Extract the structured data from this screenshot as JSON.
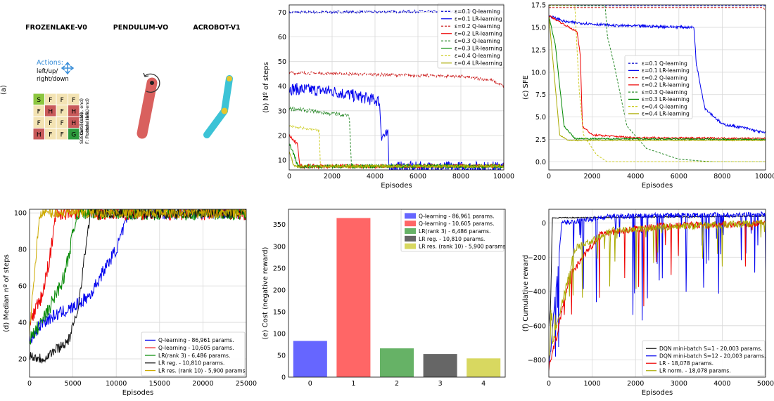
{
  "env_panel": {
    "panel_label": "(a)",
    "env_titles": [
      "FROZENLAKE-V0",
      "PENDULUM-VO",
      "ACROBOT-V1"
    ],
    "actions_title": "Actions:",
    "actions_lines": [
      "left/up/",
      "right/down"
    ],
    "grid": [
      [
        "S",
        "F",
        "F",
        "F"
      ],
      [
        "F",
        "H",
        "F",
        "H"
      ],
      [
        "F",
        "F",
        "F",
        "H"
      ],
      [
        "H",
        "F",
        "F",
        "G"
      ]
    ],
    "legend_lines": [
      "G: Goal (safe, end)",
      "H: Hole (fail, end)",
      "S: Start (safe)",
      "F: Frozen (safe)"
    ],
    "colors": {
      "S": "#8cc63f",
      "G": "#2e9b3e",
      "H": "#c85a5a",
      "F": "#f3e3b3",
      "pendulum": "#d9605e",
      "acrobot": "#3cc3d6",
      "joint": "#e6c62e",
      "actions": "#3a8fd9"
    }
  },
  "chart_data": [
    {
      "id": "b",
      "type": "line",
      "ylabel": "(b) Nº of steps",
      "xlabel": "Episodes",
      "xlim": [
        0,
        10000
      ],
      "ylim": [
        6,
        73
      ],
      "xticks": [
        "0",
        "2000",
        "4000",
        "6000",
        "8000",
        "10000"
      ],
      "yticks": [
        "10",
        "20",
        "30",
        "40",
        "50",
        "60",
        "70"
      ],
      "legend": "top-right",
      "series": [
        {
          "name": "ε=0.1 Q-learning",
          "color": "#0000cc",
          "dash": true,
          "noise": 0.5,
          "points": [
            [
              0,
              70
            ],
            [
              10000,
              70.5
            ]
          ]
        },
        {
          "name": "ε=0.1 LR-learning",
          "color": "#0000ee",
          "dash": false,
          "noise": 2.5,
          "points": [
            [
              0,
              39
            ],
            [
              2000,
              38
            ],
            [
              4200,
              34
            ],
            [
              4300,
              20
            ],
            [
              4600,
              20
            ],
            [
              4650,
              7
            ],
            [
              10000,
              7
            ]
          ]
        },
        {
          "name": "ε=0.2 Q-learning",
          "color": "#cc2222",
          "dash": true,
          "noise": 0.6,
          "points": [
            [
              0,
              45.5
            ],
            [
              8000,
              44
            ],
            [
              9400,
              42.5
            ],
            [
              10000,
              40
            ]
          ]
        },
        {
          "name": "ε=0.2 LR-learning",
          "color": "#ee0000",
          "dash": false,
          "noise": 0.8,
          "points": [
            [
              0,
              20
            ],
            [
              400,
              16
            ],
            [
              500,
              7.5
            ],
            [
              10000,
              7.5
            ]
          ]
        },
        {
          "name": "ε=0.3 Q-learning",
          "color": "#2a8a2a",
          "dash": true,
          "noise": 0.8,
          "points": [
            [
              0,
              31
            ],
            [
              2800,
              28
            ],
            [
              2900,
              7.5
            ],
            [
              10000,
              7.5
            ]
          ]
        },
        {
          "name": "ε=0.3 LR-learning",
          "color": "#008800",
          "dash": false,
          "noise": 0.8,
          "points": [
            [
              0,
              17
            ],
            [
              300,
              10
            ],
            [
              400,
              7.5
            ],
            [
              10000,
              7.5
            ]
          ]
        },
        {
          "name": "ε=0.4 Q-learning",
          "color": "#cccc22",
          "dash": true,
          "noise": 0.5,
          "points": [
            [
              0,
              24
            ],
            [
              1400,
              22
            ],
            [
              1450,
              7.5
            ],
            [
              10000,
              7.5
            ]
          ]
        },
        {
          "name": "ε=0.4 LR-learning",
          "color": "#aaaa00",
          "dash": false,
          "noise": 0.5,
          "points": [
            [
              0,
              14
            ],
            [
              200,
              8
            ],
            [
              300,
              7.5
            ],
            [
              10000,
              7.5
            ]
          ]
        }
      ]
    },
    {
      "id": "c",
      "type": "line",
      "ylabel": "(c) SFE",
      "xlabel": "Episodes",
      "xlim": [
        0,
        10000
      ],
      "ylim": [
        -0.9,
        17.5
      ],
      "xticks": [
        "0",
        "2000",
        "4000",
        "6000",
        "8000",
        "10000"
      ],
      "yticks": [
        "0.0",
        "2.5",
        "5.0",
        "7.5",
        "10.0",
        "12.5",
        "15.0",
        "17.5"
      ],
      "legend": "center-right",
      "series": [
        {
          "name": "ε=0.1 Q-learning",
          "color": "#0000cc",
          "dash": true,
          "noise": 0,
          "points": [
            [
              0,
              17.4
            ],
            [
              10000,
              17.4
            ]
          ]
        },
        {
          "name": "ε=0.1 LR-learning",
          "color": "#0000ee",
          "dash": false,
          "noise": 0.15,
          "points": [
            [
              0,
              16.3
            ],
            [
              800,
              15.6
            ],
            [
              3000,
              15.2
            ],
            [
              6700,
              15
            ],
            [
              6800,
              11
            ],
            [
              7200,
              6
            ],
            [
              8000,
              4.2
            ],
            [
              9000,
              3.8
            ],
            [
              10000,
              3.2
            ]
          ]
        },
        {
          "name": "ε=0.2 Q-learning",
          "color": "#cc2222",
          "dash": true,
          "noise": 0,
          "points": [
            [
              0,
              17.2
            ],
            [
              9900,
              17.2
            ],
            [
              10000,
              16.8
            ]
          ]
        },
        {
          "name": "ε=0.2 LR-learning",
          "color": "#ee0000",
          "dash": false,
          "noise": 0.1,
          "points": [
            [
              0,
              16.3
            ],
            [
              1300,
              14.5
            ],
            [
              1450,
              12
            ],
            [
              1550,
              4
            ],
            [
              2000,
              3
            ],
            [
              4000,
              2.7
            ],
            [
              10000,
              2.6
            ]
          ]
        },
        {
          "name": "ε=0.3 Q-learning",
          "color": "#2a8a2a",
          "dash": true,
          "noise": 0,
          "points": [
            [
              0,
              17.4
            ],
            [
              2600,
              17.4
            ],
            [
              2700,
              14
            ],
            [
              3000,
              11
            ],
            [
              3600,
              4
            ],
            [
              4500,
              1.5
            ],
            [
              6000,
              0.3
            ],
            [
              7600,
              0
            ],
            [
              10000,
              0
            ]
          ]
        },
        {
          "name": "ε=0.3 LR-learning",
          "color": "#008800",
          "dash": false,
          "noise": 0.08,
          "points": [
            [
              0,
              16.3
            ],
            [
              300,
              13
            ],
            [
              700,
              4
            ],
            [
              1200,
              2.6
            ],
            [
              10000,
              2.5
            ]
          ]
        },
        {
          "name": "ε=0.4 Q-learning",
          "color": "#cccc22",
          "dash": true,
          "noise": 0,
          "points": [
            [
              0,
              17.4
            ],
            [
              1200,
              17.4
            ],
            [
              1400,
              8
            ],
            [
              1600,
              3
            ],
            [
              2200,
              0.8
            ],
            [
              2700,
              0
            ],
            [
              10000,
              0
            ]
          ]
        },
        {
          "name": "ε=0.4 LR-learning",
          "color": "#aaaa00",
          "dash": false,
          "noise": 0.06,
          "points": [
            [
              0,
              16.3
            ],
            [
              200,
              11
            ],
            [
              500,
              3
            ],
            [
              900,
              2.4
            ],
            [
              10000,
              2.4
            ]
          ]
        }
      ]
    },
    {
      "id": "d",
      "type": "line",
      "ylabel": "(d) Median nº of steps",
      "xlabel": "Episodes",
      "xlim": [
        0,
        25000
      ],
      "ylim": [
        10,
        102
      ],
      "xticks": [
        "0",
        "5000",
        "10000",
        "15000",
        "20000",
        "25000"
      ],
      "yticks": [
        "20",
        "40",
        "60",
        "80",
        "100"
      ],
      "legend": "bottom-right",
      "series": [
        {
          "name": "Q-learning - 86,961 params.",
          "color": "#0000ee",
          "dash": false,
          "noise": 3.5,
          "points": [
            [
              0,
              30
            ],
            [
              1500,
              40
            ],
            [
              3000,
              44
            ],
            [
              5000,
              48
            ],
            [
              7000,
              55
            ],
            [
              8500,
              68
            ],
            [
              10000,
              80
            ],
            [
              11500,
              100
            ],
            [
              25000,
              100
            ]
          ]
        },
        {
          "name": "Q-learning - 10,605 params.",
          "color": "#ee0000",
          "dash": false,
          "noise": 4,
          "points": [
            [
              0,
              40
            ],
            [
              1500,
              55
            ],
            [
              2500,
              80
            ],
            [
              3000,
              100
            ],
            [
              25000,
              100
            ]
          ]
        },
        {
          "name": "LR(rank 3) - 6,486 params.",
          "color": "#008800",
          "dash": false,
          "noise": 4,
          "points": [
            [
              0,
              30
            ],
            [
              2000,
              45
            ],
            [
              4000,
              65
            ],
            [
              5500,
              100
            ],
            [
              25000,
              100
            ]
          ]
        },
        {
          "name": "LR reg. - 10,810 params.",
          "color": "#111111",
          "dash": false,
          "noise": 3,
          "points": [
            [
              0,
              22
            ],
            [
              1500,
              20
            ],
            [
              3000,
              25
            ],
            [
              4500,
              30
            ],
            [
              5500,
              45
            ],
            [
              7000,
              100
            ],
            [
              25000,
              100
            ]
          ]
        },
        {
          "name": "LR res. (rank 10) - 5,900 params",
          "color": "#ccaa00",
          "dash": false,
          "noise": 3,
          "points": [
            [
              0,
              35
            ],
            [
              800,
              80
            ],
            [
              1200,
              100
            ],
            [
              25000,
              100
            ]
          ]
        }
      ]
    },
    {
      "id": "e",
      "type": "bar",
      "ylabel": "(e) Cost (negative reward)",
      "xlabel": "",
      "categories": [
        "0",
        "1",
        "2",
        "3",
        "4"
      ],
      "values": [
        83,
        365,
        66,
        53,
        43
      ],
      "ylim": [
        0,
        385
      ],
      "yticks": [
        "0",
        "50",
        "100",
        "150",
        "200",
        "250",
        "300",
        "350"
      ],
      "legend": "top-right",
      "bar_colors": [
        "#6666ff",
        "#ff6666",
        "#66b266",
        "#666666",
        "#d8d860"
      ],
      "labels": [
        "Q-learning - 86,961 params.",
        "Q-learning - 10,605 params.",
        "LR(rank 3) - 6,486 params.",
        "LR reg. - 10,810 params.",
        "LR res. (rank 10) - 5,900 params"
      ]
    },
    {
      "id": "f",
      "type": "line",
      "ylabel": "(f) Cumulative reward",
      "xlabel": "Episodes",
      "xlim": [
        0,
        5000
      ],
      "ylim": [
        -900,
        80
      ],
      "xticks": [
        "0",
        "1000",
        "2000",
        "3000",
        "4000",
        "5000"
      ],
      "yticks": [
        "−800",
        "−600",
        "−400",
        "−200",
        "0"
      ],
      "legend": "bottom-right",
      "series": [
        {
          "name": "DQN mini-batch S=1 - 20,003 params.",
          "color": "#111111",
          "dash": false,
          "noise": 3,
          "points": [
            [
              0,
              -600
            ],
            [
              40,
              -500
            ],
            [
              80,
              30
            ],
            [
              5000,
              40
            ]
          ]
        },
        {
          "name": "DQN mini-batch S=12 - 20,003 params.",
          "color": "#0000ee",
          "dash": false,
          "noise": 15,
          "spikes": 0.12,
          "spike_depth": -870,
          "points": [
            [
              0,
              -850
            ],
            [
              300,
              0
            ],
            [
              1500,
              40
            ],
            [
              5000,
              50
            ]
          ]
        },
        {
          "name": "LR - 18,078 params.",
          "color": "#ee0000",
          "dash": false,
          "noise": 20,
          "spikes": 0.05,
          "spike_depth": -700,
          "points": [
            [
              0,
              -850
            ],
            [
              500,
              -300
            ],
            [
              1200,
              -60
            ],
            [
              2500,
              -20
            ],
            [
              5000,
              0
            ]
          ]
        },
        {
          "name": "LR norm. - 18,078 params.",
          "color": "#aaaa00",
          "dash": false,
          "noise": 20,
          "spikes": 0.06,
          "spike_depth": -500,
          "points": [
            [
              0,
              -800
            ],
            [
              600,
              -150
            ],
            [
              1500,
              -40
            ],
            [
              3000,
              -20
            ],
            [
              5000,
              0
            ]
          ]
        }
      ]
    }
  ]
}
